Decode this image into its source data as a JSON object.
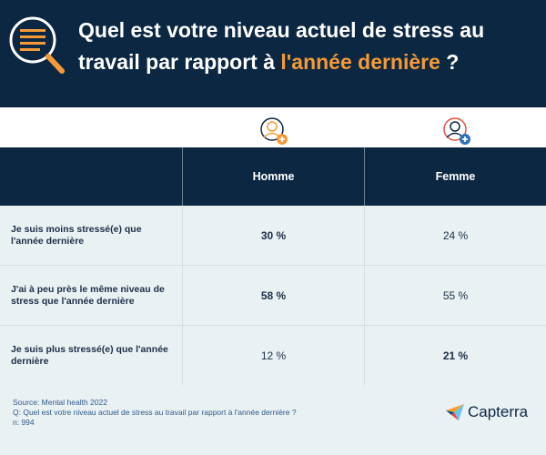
{
  "header": {
    "title_part1": "Quel est votre niveau actuel de stress au travail par rapport à ",
    "title_highlight": "l'année dernière",
    "title_part2": " ?"
  },
  "table": {
    "columns": [
      "Homme",
      "Femme"
    ],
    "rows": [
      {
        "label": "Je suis moins stressé(e) que l'année dernière",
        "homme": "30 %",
        "femme": "24 %",
        "bold": "homme"
      },
      {
        "label": "J'ai à peu près le même niveau de stress que l'année dernière",
        "homme": "58 %",
        "femme": "55 %",
        "bold": "homme"
      },
      {
        "label": "Je suis plus stressé(e) que l'année dernière",
        "homme": "12 %",
        "femme": "21 %",
        "bold": "femme"
      }
    ]
  },
  "footer": {
    "source": "Source: Mental health 2022",
    "question": "Q: Quel est votre niveau actuel de stress au travail par rapport à l'année dernière ?",
    "sample": "n: 994",
    "brand": "Capterra"
  },
  "colors": {
    "navy": "#0c2742",
    "orange": "#f59a37",
    "light": "#e9f1f3",
    "blue_plus": "#2e6fbf",
    "red_ring": "#e3523e"
  },
  "icons": {
    "header": "magnifier-document-icon",
    "male": "male-avatar-plus-icon",
    "female": "female-avatar-plus-icon",
    "brand": "capterra-logo-icon"
  }
}
